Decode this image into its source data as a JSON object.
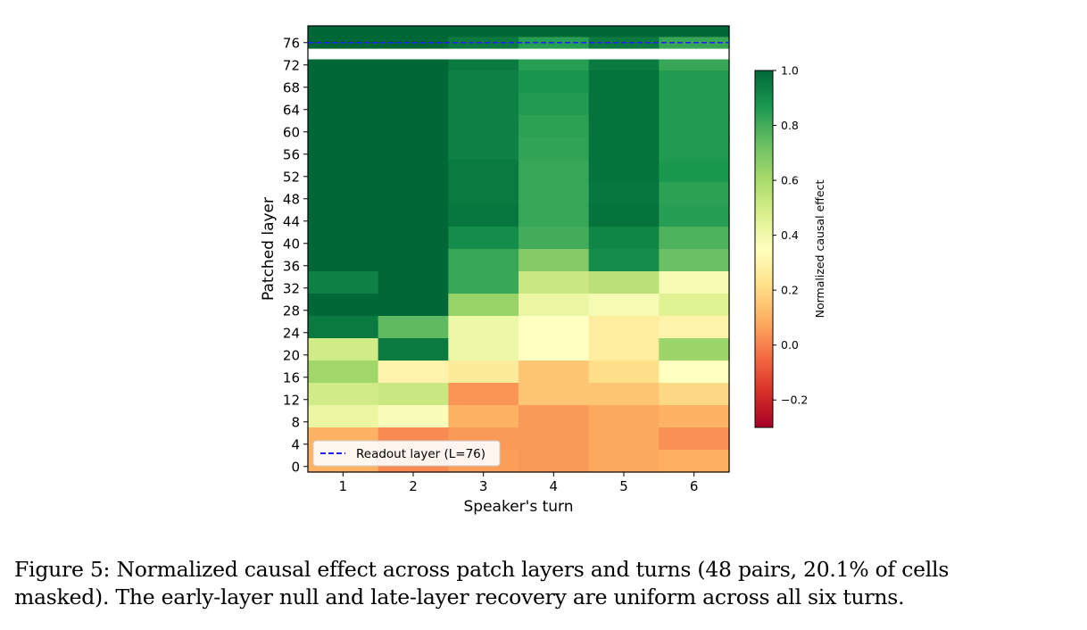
{
  "chart_data": {
    "type": "heatmap",
    "xlabel": "Speaker's turn",
    "ylabel": "Patched layer",
    "x_categories": [
      "1",
      "2",
      "3",
      "4",
      "5",
      "6"
    ],
    "y_ticks": [
      "76",
      "72",
      "68",
      "64",
      "60",
      "56",
      "52",
      "48",
      "44",
      "40",
      "36",
      "32",
      "28",
      "24",
      "20",
      "16",
      "12",
      "8",
      "4",
      "0"
    ],
    "y_rows_top_to_bottom": [
      78,
      76,
      72,
      70,
      68,
      66,
      64,
      62,
      60,
      58,
      56,
      54,
      52,
      50,
      48,
      46,
      44,
      42,
      40,
      38,
      36,
      34,
      32,
      30,
      28,
      26,
      24,
      22,
      20,
      18,
      16,
      14,
      12,
      10,
      8,
      6,
      4,
      2,
      0
    ],
    "values_top_to_bottom": [
      [
        1.0,
        1.0,
        1.0,
        1.0,
        1.0,
        1.0
      ],
      [
        1.0,
        1.0,
        0.95,
        0.85,
        0.95,
        0.82
      ],
      [
        1.0,
        1.0,
        0.95,
        0.85,
        0.95,
        0.82
      ],
      [
        1.0,
        1.0,
        0.93,
        0.88,
        0.97,
        0.86
      ],
      [
        1.0,
        1.0,
        0.93,
        0.88,
        0.97,
        0.86
      ],
      [
        1.0,
        1.0,
        0.93,
        0.86,
        0.97,
        0.86
      ],
      [
        1.0,
        1.0,
        0.93,
        0.86,
        0.97,
        0.86
      ],
      [
        1.0,
        1.0,
        0.93,
        0.84,
        0.97,
        0.86
      ],
      [
        1.0,
        1.0,
        0.93,
        0.84,
        0.97,
        0.86
      ],
      [
        1.0,
        1.0,
        0.93,
        0.83,
        0.97,
        0.86
      ],
      [
        1.0,
        1.0,
        0.93,
        0.83,
        0.97,
        0.86
      ],
      [
        1.0,
        1.0,
        0.95,
        0.82,
        0.97,
        0.87
      ],
      [
        1.0,
        1.0,
        0.95,
        0.82,
        0.97,
        0.87
      ],
      [
        1.0,
        1.0,
        0.95,
        0.82,
        0.96,
        0.84
      ],
      [
        1.0,
        1.0,
        0.95,
        0.82,
        0.96,
        0.84
      ],
      [
        1.0,
        1.0,
        0.96,
        0.82,
        0.97,
        0.85
      ],
      [
        1.0,
        1.0,
        0.96,
        0.82,
        0.97,
        0.85
      ],
      [
        1.0,
        1.0,
        0.9,
        0.8,
        0.92,
        0.78
      ],
      [
        1.0,
        1.0,
        0.9,
        0.8,
        0.92,
        0.78
      ],
      [
        1.0,
        1.0,
        0.82,
        0.68,
        0.9,
        0.73
      ],
      [
        1.0,
        1.0,
        0.82,
        0.68,
        0.9,
        0.73
      ],
      [
        0.93,
        1.0,
        0.82,
        0.52,
        0.56,
        0.38
      ],
      [
        0.93,
        1.0,
        0.82,
        0.52,
        0.56,
        0.38
      ],
      [
        1.0,
        1.0,
        0.64,
        0.42,
        0.38,
        0.46
      ],
      [
        1.0,
        1.0,
        0.64,
        0.42,
        0.38,
        0.46
      ],
      [
        0.95,
        0.75,
        0.41,
        0.35,
        0.27,
        0.3
      ],
      [
        0.95,
        0.75,
        0.41,
        0.35,
        0.27,
        0.3
      ],
      [
        0.5,
        0.95,
        0.41,
        0.35,
        0.27,
        0.63
      ],
      [
        0.5,
        0.95,
        0.41,
        0.35,
        0.27,
        0.63
      ],
      [
        0.62,
        0.3,
        0.26,
        0.15,
        0.22,
        0.35
      ],
      [
        0.62,
        0.3,
        0.26,
        0.15,
        0.22,
        0.35
      ],
      [
        0.5,
        0.52,
        0.04,
        0.15,
        0.15,
        0.2
      ],
      [
        0.5,
        0.52,
        0.04,
        0.15,
        0.15,
        0.2
      ],
      [
        0.42,
        0.37,
        0.1,
        0.05,
        0.08,
        0.1
      ],
      [
        0.42,
        0.37,
        0.1,
        0.05,
        0.08,
        0.1
      ],
      [
        0.1,
        0.02,
        0.05,
        0.05,
        0.08,
        0.03
      ],
      [
        0.1,
        0.02,
        0.05,
        0.05,
        0.08,
        0.03
      ],
      [
        0.1,
        0.02,
        0.06,
        0.05,
        0.08,
        0.09
      ],
      [
        0.1,
        0.02,
        0.06,
        0.05,
        0.08,
        0.09
      ]
    ],
    "colormap": "RdYlGn",
    "color_range": [
      -0.3,
      1.0
    ],
    "colorbar": {
      "label": "Normalized causal effect",
      "ticks": [
        "1.0",
        "0.8",
        "0.6",
        "0.4",
        "0.2",
        "0.0",
        "−0.2"
      ],
      "tick_values": [
        1.0,
        0.8,
        0.6,
        0.4,
        0.2,
        0.0,
        -0.2
      ]
    },
    "reference_line": {
      "y": 76,
      "style": "dashed",
      "color": "#1f1fff",
      "label": "Readout layer (L=76)"
    },
    "legend_position": "lower-left"
  },
  "caption": {
    "line1": "Figure 5: Normalized causal effect across patch layers and turns (48 pairs, 20.1% of cells",
    "line2": "masked). The early-layer null and late-layer recovery are uniform across all six turns."
  }
}
